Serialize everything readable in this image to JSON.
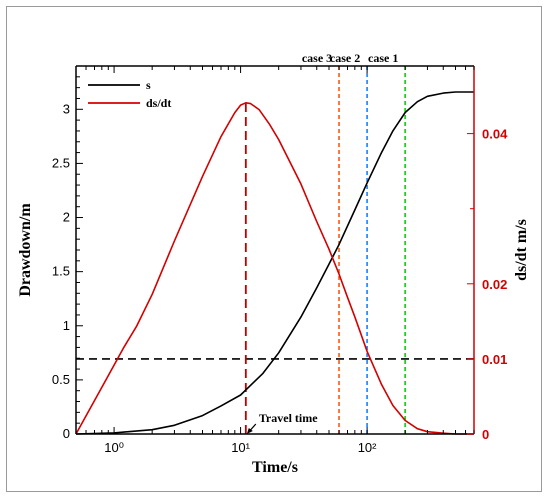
{
  "chart_data": {
    "type": "line",
    "xlabel": "Time/s",
    "ylabel_left": "Drawdown/m",
    "ylabel_right": "ds/dt  m/s",
    "x_scale": "log",
    "xlim": [
      0.5,
      700
    ],
    "ylim_left": [
      0,
      3.4
    ],
    "ylim_right": [
      0,
      0.049
    ],
    "x_ticks": [
      {
        "value": 1,
        "label": "10⁰"
      },
      {
        "value": 10,
        "label": "10¹"
      },
      {
        "value": 100,
        "label": "10²"
      }
    ],
    "y_ticks_left": [
      {
        "value": 0,
        "label": "0"
      },
      {
        "value": 0.5,
        "label": "0.5"
      },
      {
        "value": 1,
        "label": "1"
      },
      {
        "value": 1.5,
        "label": "1.5"
      },
      {
        "value": 2,
        "label": "2"
      },
      {
        "value": 2.5,
        "label": "2.5"
      },
      {
        "value": 3,
        "label": "3"
      }
    ],
    "y_ticks_right": [
      {
        "value": 0,
        "label": "0"
      },
      {
        "value": 0.01,
        "label": "0.01"
      },
      {
        "value": 0.02,
        "label": "0.02"
      },
      {
        "value": 0.04,
        "label": "0.04"
      }
    ],
    "legend_position": "top-left",
    "series": [
      {
        "name": "s",
        "axis": "left",
        "color": "#000000",
        "x": [
          0.5,
          1,
          2,
          3,
          5,
          7,
          10,
          15,
          20,
          30,
          40,
          50,
          60,
          80,
          100,
          130,
          160,
          200,
          250,
          300,
          400,
          500,
          700
        ],
        "y": [
          0,
          0.01,
          0.04,
          0.08,
          0.17,
          0.26,
          0.36,
          0.56,
          0.75,
          1.08,
          1.35,
          1.57,
          1.75,
          2.07,
          2.32,
          2.6,
          2.8,
          2.97,
          3.07,
          3.12,
          3.15,
          3.16,
          3.16
        ]
      },
      {
        "name": "ds/dt",
        "axis": "right",
        "color": "#d40000",
        "x": [
          0.5,
          0.8,
          1.2,
          1.5,
          2,
          3,
          5,
          7,
          9,
          10,
          11,
          12,
          14,
          17,
          20,
          30,
          40,
          50,
          60,
          70,
          80,
          100,
          130,
          160,
          200,
          250,
          300,
          400,
          500,
          700
        ],
        "y": [
          0,
          0.0062,
          0.0116,
          0.0143,
          0.0186,
          0.0257,
          0.0343,
          0.0396,
          0.0428,
          0.0438,
          0.0441,
          0.044,
          0.0432,
          0.0412,
          0.0392,
          0.0333,
          0.0283,
          0.0246,
          0.0213,
          0.0182,
          0.0156,
          0.011,
          0.0066,
          0.0038,
          0.0018,
          0.0007,
          0.0003,
          0.0001,
          0,
          0
        ]
      }
    ],
    "reference_lines": [
      {
        "name": "threshold",
        "orientation": "horizontal",
        "axis": "right",
        "value": 0.01,
        "color": "#000000",
        "label": ""
      },
      {
        "name": "travel-time",
        "orientation": "vertical",
        "value": 11,
        "y_to_right": 0.0441,
        "color": "#c00000",
        "label": ""
      },
      {
        "name": "case-3",
        "orientation": "vertical",
        "value": 60,
        "color": "#ff6a2a",
        "label": "case 3"
      },
      {
        "name": "case-2",
        "orientation": "vertical",
        "value": 100,
        "color": "#2f8fff",
        "label": "case 2"
      },
      {
        "name": "case-1",
        "orientation": "vertical",
        "value": 200,
        "color": "#22cc22",
        "label": "case 1"
      }
    ],
    "annotations": [
      {
        "text": "Travel time",
        "x": 11,
        "y_right": 0
      }
    ]
  }
}
